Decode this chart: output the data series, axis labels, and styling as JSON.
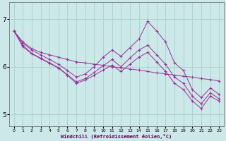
{
  "xlabel": "Windchill (Refroidissement éolien,°C)",
  "bg_color": "#cce8e8",
  "line_color": "#993399",
  "grid_color": "#aad4d4",
  "xticks": [
    0,
    1,
    2,
    3,
    4,
    5,
    6,
    7,
    8,
    9,
    10,
    11,
    12,
    13,
    14,
    15,
    16,
    17,
    18,
    19,
    20,
    21,
    22,
    23
  ],
  "yticks": [
    5,
    6,
    7
  ],
  "xlim": [
    -0.5,
    23.5
  ],
  "ylim": [
    4.75,
    7.35
  ],
  "series": [
    [
      6.75,
      6.52,
      6.38,
      6.3,
      6.25,
      6.2,
      6.15,
      6.1,
      6.08,
      6.05,
      6.03,
      6.0,
      5.98,
      5.95,
      5.93,
      5.9,
      5.87,
      5.85,
      5.82,
      5.8,
      5.78,
      5.75,
      5.73,
      5.7
    ],
    [
      6.75,
      6.5,
      6.35,
      6.25,
      6.15,
      6.05,
      5.92,
      5.78,
      5.85,
      6.0,
      6.2,
      6.35,
      6.22,
      6.4,
      6.58,
      6.95,
      6.75,
      6.52,
      6.08,
      5.92,
      5.52,
      5.35,
      5.55,
      5.42
    ],
    [
      6.75,
      6.45,
      6.28,
      6.18,
      6.08,
      5.98,
      5.83,
      5.68,
      5.75,
      5.88,
      6.02,
      6.15,
      6.0,
      6.18,
      6.35,
      6.45,
      6.25,
      6.05,
      5.78,
      5.65,
      5.38,
      5.22,
      5.45,
      5.33
    ],
    [
      6.75,
      6.42,
      6.27,
      6.17,
      6.07,
      5.97,
      5.82,
      5.65,
      5.72,
      5.82,
      5.93,
      6.03,
      5.9,
      6.05,
      6.2,
      6.3,
      6.1,
      5.9,
      5.65,
      5.52,
      5.28,
      5.12,
      5.38,
      5.28
    ]
  ]
}
